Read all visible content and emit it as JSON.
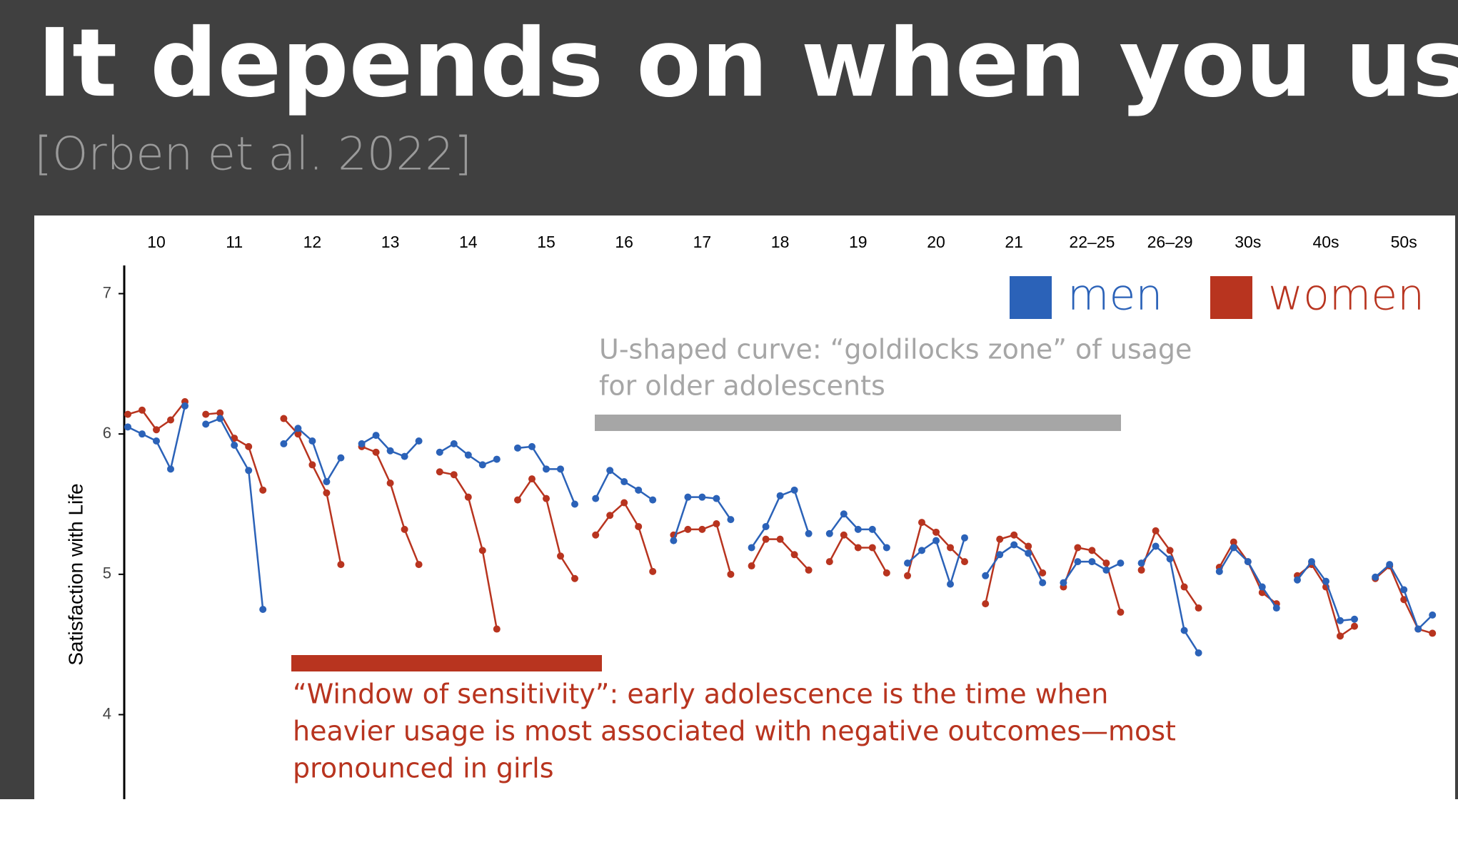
{
  "chart_data": {
    "type": "line",
    "title": "It depends on when you use it.",
    "subtitle": "[Orben et al. 2022]",
    "y_label": "Satisfaction with Life",
    "categories": [
      "10",
      "11",
      "12",
      "13",
      "14",
      "15",
      "16",
      "17",
      "18",
      "19",
      "20",
      "21",
      "22–25",
      "26–29",
      "30s",
      "40s",
      "50s"
    ],
    "ylim": [
      3.4,
      7.2
    ],
    "yticks": [
      4,
      5,
      6,
      7
    ],
    "series": [
      {
        "name": "men",
        "color": "#2b62b8",
        "values": [
          [
            6.05,
            6.0,
            5.95,
            5.75,
            6.2
          ],
          [
            6.07,
            6.11,
            5.92,
            5.74,
            4.75
          ],
          [
            5.93,
            6.04,
            5.95,
            5.66,
            5.83
          ],
          [
            5.93,
            5.99,
            5.88,
            5.84,
            5.95
          ],
          [
            5.87,
            5.93,
            5.85,
            5.78,
            5.82
          ],
          [
            5.9,
            5.91,
            5.75,
            5.75,
            5.5
          ],
          [
            5.54,
            5.74,
            5.66,
            5.6,
            5.53
          ],
          [
            5.24,
            5.55,
            5.55,
            5.54,
            5.39
          ],
          [
            5.19,
            5.34,
            5.56,
            5.6,
            5.29
          ],
          [
            5.29,
            5.43,
            5.32,
            5.32,
            5.19
          ],
          [
            5.08,
            5.17,
            5.24,
            4.93,
            5.26
          ],
          [
            4.99,
            5.14,
            5.21,
            5.15,
            4.94
          ],
          [
            4.94,
            5.09,
            5.09,
            5.03,
            5.08
          ],
          [
            5.08,
            5.2,
            5.11,
            4.6,
            4.44
          ],
          [
            5.02,
            5.19,
            5.09,
            4.91,
            4.76
          ],
          [
            4.96,
            5.09,
            4.95,
            4.67,
            4.68
          ],
          [
            4.98,
            5.07,
            4.89,
            4.61,
            4.71
          ]
        ]
      },
      {
        "name": "women",
        "color": "#b8341f",
        "values": [
          [
            6.14,
            6.17,
            6.03,
            6.1,
            6.23
          ],
          [
            6.14,
            6.15,
            5.97,
            5.91,
            5.6
          ],
          [
            6.11,
            6.0,
            5.78,
            5.58,
            5.07
          ],
          [
            5.91,
            5.87,
            5.65,
            5.32,
            5.07
          ],
          [
            5.73,
            5.71,
            5.55,
            5.17,
            4.61
          ],
          [
            5.53,
            5.68,
            5.54,
            5.13,
            4.97
          ],
          [
            5.28,
            5.42,
            5.51,
            5.34,
            5.02
          ],
          [
            5.28,
            5.32,
            5.32,
            5.36,
            5.0
          ],
          [
            5.06,
            5.25,
            5.25,
            5.14,
            5.03
          ],
          [
            5.09,
            5.28,
            5.19,
            5.19,
            5.01
          ],
          [
            4.99,
            5.37,
            5.3,
            5.19,
            5.09
          ],
          [
            4.79,
            5.25,
            5.28,
            5.2,
            5.01
          ],
          [
            4.91,
            5.19,
            5.17,
            5.08,
            4.73
          ],
          [
            5.03,
            5.31,
            5.17,
            4.91,
            4.76
          ],
          [
            5.05,
            5.23,
            5.09,
            4.87,
            4.79
          ],
          [
            4.99,
            5.07,
            4.91,
            4.56,
            4.63
          ],
          [
            4.97,
            5.06,
            4.82,
            4.61,
            4.58
          ]
        ]
      }
    ],
    "annotations": [
      {
        "color": "#a6a6a6",
        "lines": [
          "U-shaped curve: “goldilocks zone” of usage",
          "for older adolescents"
        ]
      },
      {
        "color": "#b8341f",
        "lines": [
          "“Window of sensitivity”: early adolescence is the time when",
          "heavier usage is most associated with negative outcomes—most",
          "pronounced in girls"
        ]
      }
    ]
  }
}
